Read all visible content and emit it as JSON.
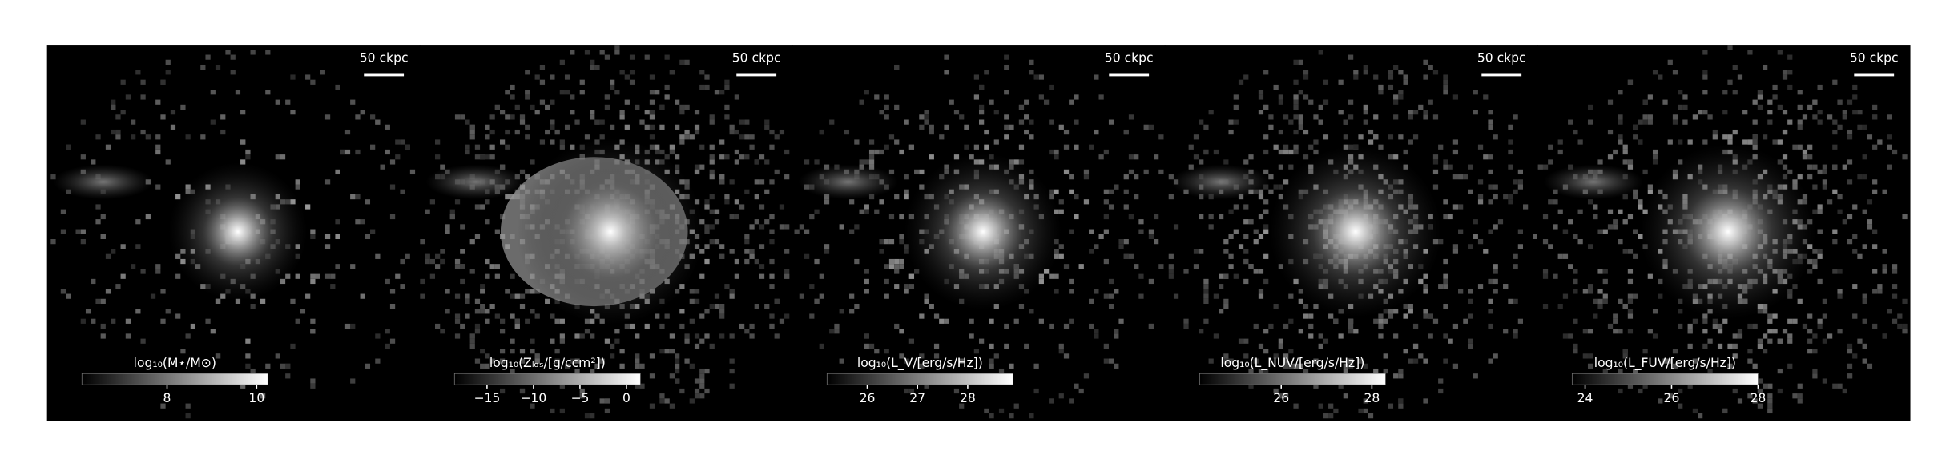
{
  "chart_data": [
    {
      "type": "image",
      "cmap": "gray",
      "scale_label": "50 ckpc",
      "colorbar_label": "log₁₀(M⋆/M⊙)",
      "clim": [
        6.1,
        10.25
      ],
      "cticks": [
        8,
        10
      ]
    },
    {
      "type": "image",
      "cmap": "gray",
      "scale_label": "50 ckpc",
      "colorbar_label": "log₁₀(Zₗₒₛ/[g/ccm²])",
      "clim": [
        -18.5,
        1.5
      ],
      "cticks": [
        {
          "value": -15,
          "label": "−15"
        },
        {
          "value": -10,
          "label": "−10"
        },
        {
          "value": -5,
          "label": "−5"
        },
        0
      ]
    },
    {
      "type": "image",
      "cmap": "gray",
      "scale_label": "50 ckpc",
      "colorbar_label": "log₁₀(L_V/[erg/s/Hz])",
      "clim": [
        25.2,
        28.9
      ],
      "cticks": [
        26,
        27,
        28
      ]
    },
    {
      "type": "image",
      "cmap": "gray",
      "scale_label": "50 ckpc",
      "colorbar_label": "log₁₀(L_NUV/[erg/s/Hz])",
      "clim": [
        24.2,
        28.3
      ],
      "cticks": [
        26,
        28
      ]
    },
    {
      "type": "image",
      "cmap": "gray",
      "scale_label": "50 ckpc",
      "colorbar_label": "log₁₀(L_FUV/[erg/s/Hz])",
      "clim": [
        23.7,
        28
      ],
      "cticks": [
        24,
        26,
        28
      ]
    }
  ]
}
